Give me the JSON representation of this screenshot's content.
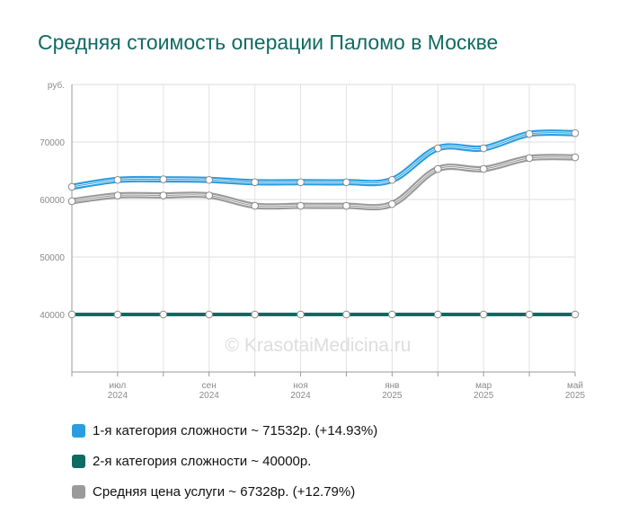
{
  "title": "Средняя стоимость операции Паломо в Москве",
  "watermark": "© KrasotaiMedicina.ru",
  "chart_data": {
    "type": "line",
    "title": "Средняя стоимость операции Паломо в Москве",
    "y_unit": "руб.",
    "ylim": [
      30000,
      80000
    ],
    "y_ticks": [
      40000,
      50000,
      60000,
      70000
    ],
    "grid": true,
    "legend_position": "bottom",
    "x_labels": [
      {
        "month": "июл",
        "year": "2024"
      },
      {
        "month": "сен",
        "year": "2024"
      },
      {
        "month": "ноя",
        "year": "2024"
      },
      {
        "month": "янв",
        "year": "2025"
      },
      {
        "month": "мар",
        "year": "2025"
      },
      {
        "month": "май",
        "year": "2025"
      }
    ],
    "x": [
      "2024-06",
      "2024-07",
      "2024-08",
      "2024-09",
      "2024-10",
      "2024-11",
      "2024-12",
      "2025-01",
      "2025-02",
      "2025-03",
      "2025-04",
      "2025-05"
    ],
    "series": [
      {
        "name": "1-я категория сложности",
        "legend": "1-я категория сложности ~ 71532р. (+14.93%)",
        "color": "#2a9de0",
        "values": [
          62200,
          63400,
          63500,
          63400,
          63000,
          63000,
          63000,
          63400,
          68900,
          68900,
          71400,
          71532
        ]
      },
      {
        "name": "2-я категория сложности",
        "legend": "2-я категория сложности ~ 40000р.",
        "color": "#0d6b62",
        "values": [
          40000,
          40000,
          40000,
          40000,
          40000,
          40000,
          40000,
          40000,
          40000,
          40000,
          40000,
          40000
        ]
      },
      {
        "name": "Средняя цена услуги",
        "legend": "Средняя цена услуги ~ 67328р. (+12.79%)",
        "color": "#9a9a9a",
        "values": [
          59700,
          60700,
          60700,
          60700,
          58900,
          58900,
          58900,
          59200,
          65300,
          65300,
          67200,
          67328
        ]
      }
    ]
  }
}
